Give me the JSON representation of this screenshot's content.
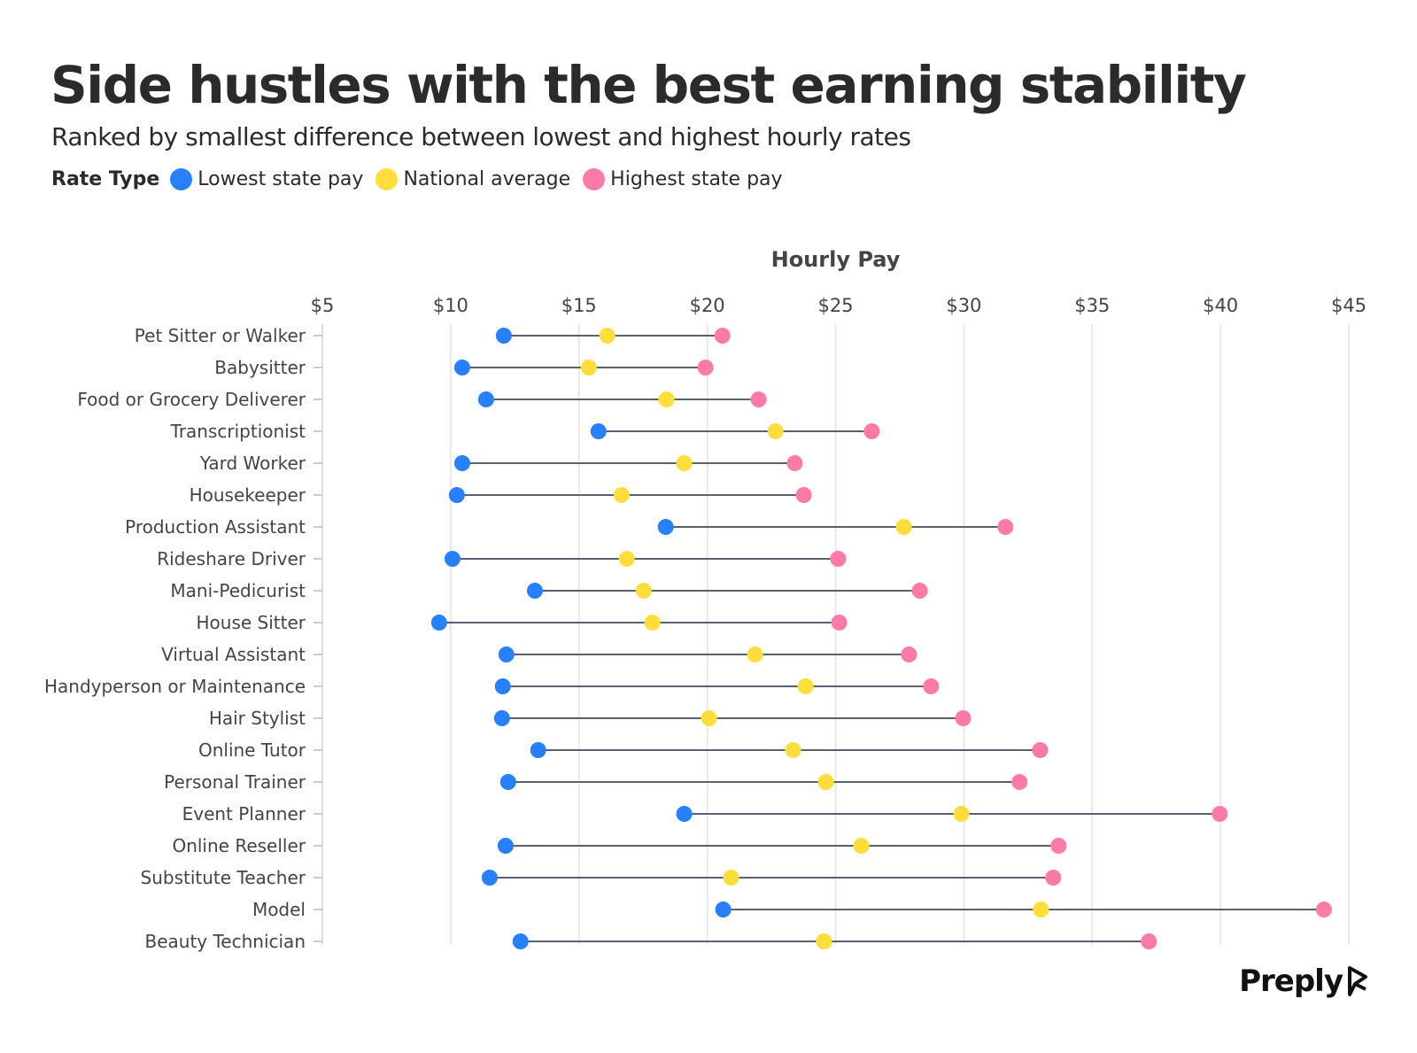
{
  "chart_data": {
    "type": "dumbbell",
    "title": "Side hustles with the best earning stability",
    "subtitle": "Ranked by smallest difference between lowest and highest hourly rates",
    "legend_title": "Rate Type",
    "legend_placement": "top-left",
    "xlabel": "Hourly Pay",
    "xlim": [
      5,
      45
    ],
    "x_ticks": [
      "$5",
      "$10",
      "$15",
      "$20",
      "$25",
      "$30",
      "$35",
      "$40",
      "$45"
    ],
    "x_tick_values": [
      5,
      10,
      15,
      20,
      25,
      30,
      35,
      40,
      45
    ],
    "grid": "vertical",
    "categories": [
      "Pet Sitter or Walker",
      "Babysitter",
      "Food or Grocery Deliverer",
      "Transcriptionist",
      "Yard Worker",
      "Housekeeper",
      "Production Assistant",
      "Rideshare Driver",
      "Mani-Pedicurist",
      "House Sitter",
      "Virtual Assistant",
      "Handyperson or Maintenance",
      "Hair Stylist",
      "Online Tutor",
      "Personal Trainer",
      "Event Planner",
      "Online Reseller",
      "Substitute Teacher",
      "Model",
      "Beauty Technician"
    ],
    "series": [
      {
        "name": "Lowest state pay",
        "color": "#2680ff",
        "values": [
          12.07,
          10.45,
          11.38,
          15.76,
          10.45,
          10.24,
          18.38,
          10.07,
          13.28,
          9.55,
          12.17,
          12.03,
          12.0,
          13.41,
          12.24,
          19.1,
          12.14,
          11.52,
          20.62,
          12.72
        ]
      },
      {
        "name": "National average",
        "color": "#ffde3b",
        "values": [
          16.1,
          15.38,
          18.41,
          22.66,
          19.1,
          16.66,
          27.66,
          16.86,
          17.52,
          17.86,
          21.86,
          23.83,
          20.07,
          23.34,
          24.62,
          29.9,
          26.0,
          20.93,
          33.0,
          24.55
        ]
      },
      {
        "name": "Highest state pay",
        "color": "#ff7aa8",
        "values": [
          20.59,
          19.93,
          22.0,
          26.41,
          23.41,
          23.76,
          31.62,
          25.1,
          28.28,
          25.14,
          27.86,
          28.72,
          29.97,
          32.97,
          32.17,
          39.97,
          33.69,
          33.48,
          44.03,
          37.21
        ]
      }
    ]
  },
  "brand": {
    "logo_text": "Preply"
  }
}
